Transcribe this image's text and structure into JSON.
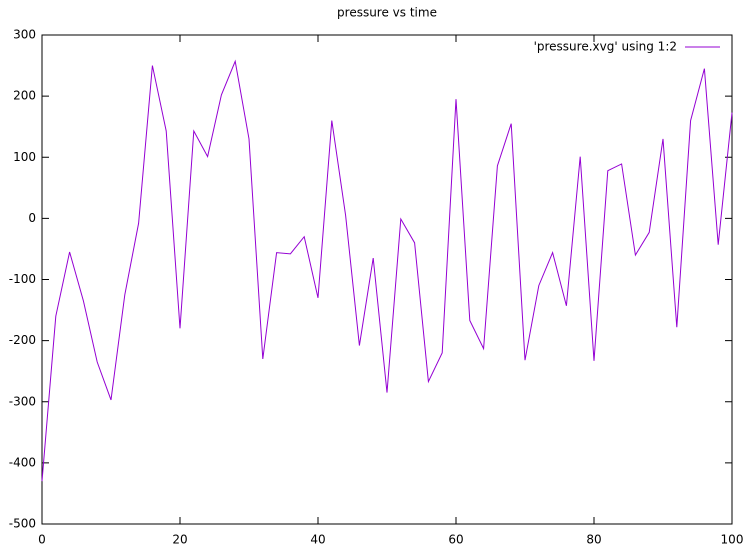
{
  "chart_data": {
    "type": "line",
    "title": "pressure vs time",
    "x": [
      0,
      2,
      4,
      6,
      8,
      10,
      12,
      14,
      16,
      18,
      20,
      22,
      24,
      26,
      28,
      30,
      32,
      34,
      36,
      38,
      40,
      42,
      44,
      46,
      48,
      50,
      52,
      54,
      56,
      58,
      60,
      62,
      64,
      66,
      68,
      70,
      72,
      74,
      76,
      78,
      80,
      82,
      84,
      86,
      88,
      90,
      92,
      94,
      96,
      98,
      100
    ],
    "series": [
      {
        "name": "'pressure.xvg' using 1:2",
        "color": "#9400d3",
        "values": [
          -430,
          -160,
          -55,
          -135,
          -235,
          -297,
          -125,
          -8,
          250,
          143,
          -180,
          143,
          101,
          202,
          257,
          130,
          -230,
          -56,
          -58,
          -30,
          -130,
          160,
          5,
          -208,
          -65,
          -285,
          -1,
          -40,
          -267,
          -220,
          195,
          -167,
          -213,
          86,
          155,
          -232,
          -110,
          -56,
          -143,
          101,
          -233,
          78,
          89,
          -60,
          -23,
          130,
          -178,
          160,
          245,
          -43,
          173
        ]
      }
    ],
    "xlim": [
      0,
      100
    ],
    "xticks": [
      0,
      20,
      40,
      60,
      80,
      100
    ],
    "ylim": [
      -500,
      300
    ],
    "yticks": [
      -500,
      -400,
      -300,
      -200,
      -100,
      0,
      100,
      200,
      300
    ],
    "grid": false,
    "legend": "top-right"
  }
}
